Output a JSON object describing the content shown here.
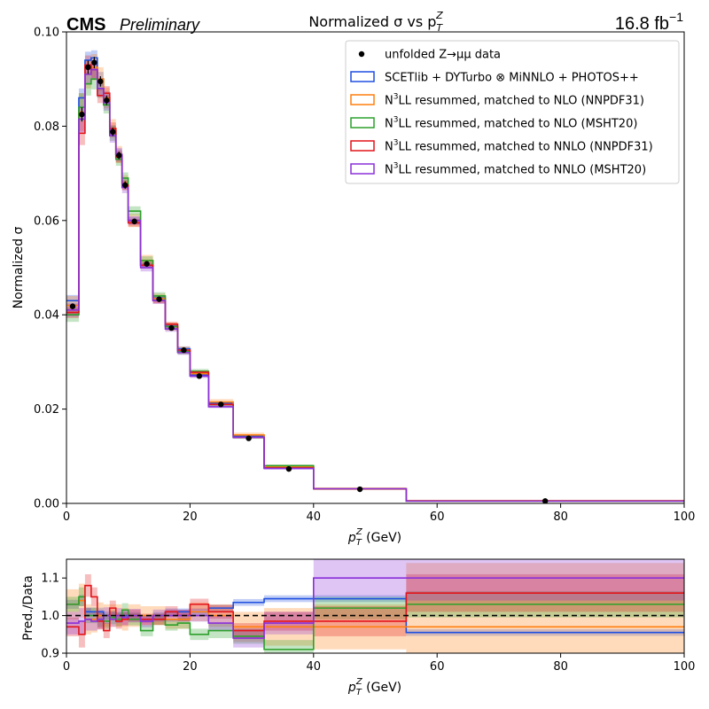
{
  "header": {
    "experiment": "CMS",
    "status": "Preliminary",
    "title": "Normalized σ vs p",
    "title_sub": "T",
    "title_sup": "Z",
    "lumi": "16.8 fb",
    "lumi_exp": "−1"
  },
  "axes": {
    "top_ylabel": "Normalized σ",
    "bottom_ylabel": "Pred./Data",
    "xlabel_main": "p",
    "xlabel_sub": "T",
    "xlabel_sup": "Z",
    "xlabel_unit": " (GeV)"
  },
  "legend": [
    {
      "prefix": "",
      "text": "unfolded Z→μμ data"
    },
    {
      "prefix": "",
      "text": "SCETlib + DYTurbo ⊗ MiNNLO + PHOTOS++"
    },
    {
      "prefix": "N",
      "sup": "3",
      "text": "LL resummed, matched to NLO (NNPDF31)"
    },
    {
      "prefix": "N",
      "sup": "3",
      "text": "LL resummed, matched to NLO (MSHT20)"
    },
    {
      "prefix": "N",
      "sup": "3",
      "text": "LL resummed, matched to NNLO (NNPDF31)"
    },
    {
      "prefix": "N",
      "sup": "3",
      "text": "LL resummed, matched to NNLO (MSHT20)"
    }
  ],
  "chart_data": [
    {
      "type": "line",
      "panel": "main",
      "xlim": [
        0,
        100
      ],
      "ylim": [
        0,
        0.1
      ],
      "xticks": [
        "0",
        "20",
        "40",
        "60",
        "80",
        "100"
      ],
      "yticks": [
        "0.00",
        "0.02",
        "0.04",
        "0.06",
        "0.08",
        "0.10"
      ],
      "bin_edges": [
        0,
        2,
        3,
        4,
        5,
        6,
        7,
        8,
        9,
        10,
        12,
        14,
        16,
        18,
        20,
        23,
        27,
        32,
        40,
        55,
        100
      ],
      "data": {
        "name": "unfolded Z→μμ data",
        "x": [
          1,
          2.5,
          3.5,
          4.5,
          5.5,
          6.5,
          7.5,
          8.5,
          9.5,
          11,
          13,
          15,
          17,
          19,
          21.5,
          25,
          29.5,
          36,
          47.5,
          77.5
        ],
        "y": [
          0.0418,
          0.0825,
          0.0925,
          0.0935,
          0.0895,
          0.0855,
          0.0788,
          0.0738,
          0.0675,
          0.0598,
          0.0508,
          0.0433,
          0.0372,
          0.0325,
          0.027,
          0.021,
          0.0138,
          0.0073,
          0.003,
          0.0005
        ],
        "err": [
          0.0006,
          0.0015,
          0.0014,
          0.0012,
          0.0011,
          0.001,
          0.0009,
          0.0008,
          0.0008,
          0.0006,
          0.0005,
          0.0004,
          0.0004,
          0.0003,
          0.0003,
          0.0002,
          0.0002,
          0.0001,
          5e-05,
          2e-05
        ]
      },
      "series": [
        {
          "name": "SCETlib + DYTurbo ⊗ MiNNLO + PHOTOS++",
          "color": "#1f4fe0",
          "values": [
            0.043,
            0.086,
            0.094,
            0.0945,
            0.09,
            0.086,
            0.079,
            0.074,
            0.068,
            0.06,
            0.0505,
            0.0436,
            0.0376,
            0.0328,
            0.0272,
            0.0213,
            0.0143,
            0.0076,
            0.0031,
            0.0005
          ],
          "band": [
            0.0012,
            0.002,
            0.0018,
            0.0016,
            0.0015,
            0.0014,
            0.0012,
            0.0011,
            0.001,
            0.0008,
            0.0007,
            0.0006,
            0.0005,
            0.0005,
            0.0004,
            0.0003,
            0.0002,
            0.0002,
            0.0001,
            3e-05
          ]
        },
        {
          "name": "N3LL resummed, matched to NLO (NNPDF31)",
          "color": "#ff7f0e",
          "values": [
            0.042,
            0.083,
            0.091,
            0.0925,
            0.09,
            0.086,
            0.0795,
            0.074,
            0.068,
            0.06,
            0.0515,
            0.0435,
            0.0375,
            0.0325,
            0.0275,
            0.0215,
            0.0145,
            0.0078,
            0.0031,
            0.0006
          ],
          "band": [
            0.002,
            0.004,
            0.003,
            0.0028,
            0.0025,
            0.0022,
            0.002,
            0.0018,
            0.0016,
            0.0014,
            0.0012,
            0.001,
            0.0009,
            0.0008,
            0.0007,
            0.0006,
            0.0005,
            0.0004,
            0.0003,
            0.0001
          ]
        },
        {
          "name": "N3LL resummed, matched to NLO (MSHT20)",
          "color": "#2ca02c",
          "values": [
            0.04,
            0.084,
            0.089,
            0.09,
            0.088,
            0.0845,
            0.0785,
            0.073,
            0.069,
            0.062,
            0.0515,
            0.044,
            0.0375,
            0.0322,
            0.028,
            0.021,
            0.014,
            0.008,
            0.0031,
            0.0005
          ],
          "band": [
            0.0015,
            0.003,
            0.0025,
            0.0022,
            0.002,
            0.0018,
            0.0016,
            0.0014,
            0.0012,
            0.001,
            0.0009,
            0.0008,
            0.0007,
            0.0006,
            0.0005,
            0.0004,
            0.0003,
            0.0002,
            0.0001,
            3e-05
          ]
        },
        {
          "name": "N3LL resummed, matched to NNLO (NNPDF31)",
          "color": "#e3141a",
          "values": [
            0.0405,
            0.0785,
            0.093,
            0.092,
            0.0865,
            0.087,
            0.0795,
            0.0735,
            0.0675,
            0.0595,
            0.0505,
            0.043,
            0.038,
            0.0325,
            0.0278,
            0.021,
            0.014,
            0.0075,
            0.0031,
            0.0005
          ],
          "band": [
            0.0012,
            0.0025,
            0.002,
            0.0018,
            0.0016,
            0.0015,
            0.0013,
            0.0012,
            0.001,
            0.0008,
            0.0007,
            0.0006,
            0.0005,
            0.0004,
            0.0004,
            0.0003,
            0.0002,
            0.0002,
            0.0001,
            2e-05
          ]
        },
        {
          "name": "N3LL resummed, matched to NNLO (MSHT20)",
          "color": "#8a30d9",
          "values": [
            0.041,
            0.0815,
            0.091,
            0.092,
            0.088,
            0.085,
            0.078,
            0.074,
            0.067,
            0.06,
            0.05,
            0.043,
            0.037,
            0.032,
            0.027,
            0.0205,
            0.014,
            0.0074,
            0.0031,
            0.0005
          ],
          "band": [
            0.0014,
            0.0028,
            0.0022,
            0.002,
            0.0018,
            0.0017,
            0.0015,
            0.0014,
            0.0012,
            0.0009,
            0.0008,
            0.0007,
            0.0006,
            0.0005,
            0.0004,
            0.0003,
            0.0002,
            0.0002,
            0.0001,
            3e-05
          ]
        }
      ]
    },
    {
      "type": "line",
      "panel": "ratio",
      "xlim": [
        0,
        100
      ],
      "ylim": [
        0.9,
        1.15
      ],
      "xticks": [
        "0",
        "20",
        "40",
        "60",
        "80",
        "100"
      ],
      "yticks": [
        "0.9",
        "1.0",
        "1.1"
      ],
      "reference_line": 1.0,
      "bin_edges": [
        0,
        2,
        3,
        4,
        5,
        6,
        7,
        8,
        9,
        10,
        12,
        14,
        16,
        18,
        20,
        23,
        27,
        32,
        40,
        55,
        100
      ],
      "series": [
        {
          "name": "SCETlib + DYTurbo ⊗ MiNNLO + PHOTOS++",
          "color": "#1f4fe0",
          "values": [
            1.03,
            1.04,
            1.01,
            1.01,
            1.01,
            1.0,
            1.0,
            1.0,
            1.0,
            1.0,
            0.99,
            1.0,
            1.01,
            1.01,
            1.01,
            1.02,
            1.035,
            1.045,
            1.045,
            0.955
          ],
          "band": [
            0.012,
            0.015,
            0.012,
            0.012,
            0.011,
            0.011,
            0.01,
            0.01,
            0.01,
            0.009,
            0.009,
            0.009,
            0.009,
            0.009,
            0.009,
            0.009,
            0.009,
            0.009,
            0.009,
            0.009
          ]
        },
        {
          "name": "N3LL resummed, matched to NLO (NNPDF31)",
          "color": "#ff7f0e",
          "values": [
            1.03,
            1.04,
            0.99,
            0.99,
            1.0,
            1.0,
            1.0,
            1.0,
            0.99,
            1.0,
            1.0,
            1.0,
            0.99,
            0.99,
            1.01,
            1.0,
            0.97,
            0.97,
            0.97,
            0.97
          ],
          "band": [
            0.04,
            0.045,
            0.04,
            0.035,
            0.035,
            0.03,
            0.03,
            0.03,
            0.03,
            0.03,
            0.025,
            0.025,
            0.025,
            0.025,
            0.025,
            0.03,
            0.04,
            0.05,
            0.06,
            0.17
          ]
        },
        {
          "name": "N3LL resummed, matched to NLO (MSHT20)",
          "color": "#2ca02c",
          "values": [
            1.03,
            1.05,
            1.0,
            1.0,
            0.99,
            0.985,
            0.995,
            0.99,
            1.015,
            0.99,
            0.96,
            0.99,
            0.975,
            0.98,
            0.95,
            0.96,
            0.945,
            0.91,
            1.02,
            1.03
          ],
          "band": [
            0.02,
            0.025,
            0.02,
            0.02,
            0.02,
            0.02,
            0.018,
            0.018,
            0.018,
            0.016,
            0.015,
            0.015,
            0.015,
            0.015,
            0.015,
            0.02,
            0.02,
            0.025,
            0.03,
            0.035
          ]
        },
        {
          "name": "N3LL resummed, matched to NNLO (NNPDF31)",
          "color": "#e3141a",
          "values": [
            0.97,
            0.95,
            1.08,
            1.05,
            0.985,
            0.96,
            1.02,
            0.985,
            0.99,
            1.0,
            0.99,
            0.99,
            1.01,
            1.0,
            1.03,
            1.01,
            0.96,
            0.985,
            0.985,
            1.06
          ],
          "band": [
            0.025,
            0.035,
            0.03,
            0.025,
            0.022,
            0.02,
            0.02,
            0.02,
            0.018,
            0.016,
            0.015,
            0.015,
            0.015,
            0.015,
            0.015,
            0.018,
            0.02,
            0.025,
            0.04,
            0.05
          ]
        },
        {
          "name": "N3LL resummed, matched to NNLO (MSHT20)",
          "color": "#8a30d9",
          "values": [
            0.98,
            0.985,
            0.99,
            0.985,
            0.99,
            1.0,
            0.99,
            1.0,
            0.995,
            1.0,
            0.985,
            1.0,
            1.0,
            1.0,
            1.0,
            0.98,
            0.94,
            0.98,
            1.1,
            1.1
          ],
          "band": [
            0.03,
            0.035,
            0.03,
            0.025,
            0.025,
            0.022,
            0.02,
            0.02,
            0.02,
            0.018,
            0.016,
            0.016,
            0.016,
            0.016,
            0.016,
            0.02,
            0.025,
            0.03,
            0.05,
            0.06
          ]
        }
      ]
    }
  ]
}
